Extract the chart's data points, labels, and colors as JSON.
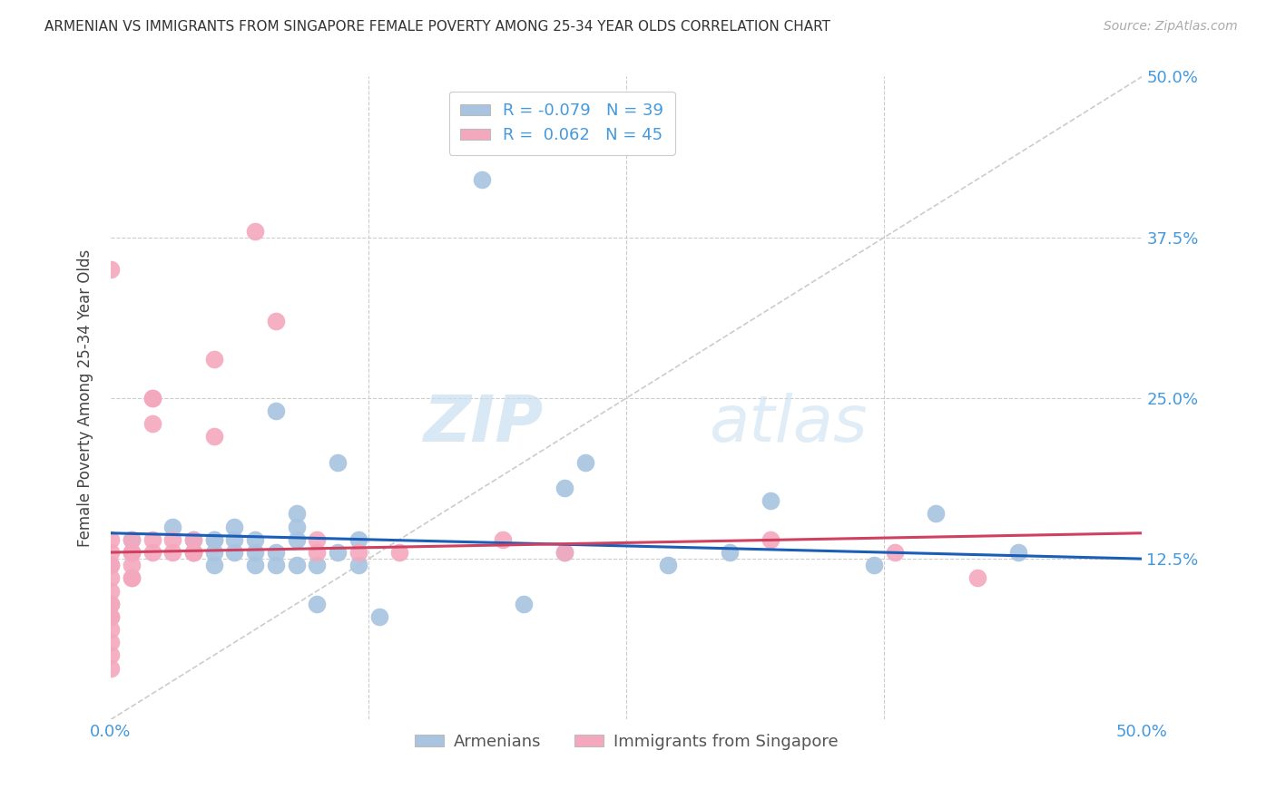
{
  "title": "ARMENIAN VS IMMIGRANTS FROM SINGAPORE FEMALE POVERTY AMONG 25-34 YEAR OLDS CORRELATION CHART",
  "source": "Source: ZipAtlas.com",
  "ylabel": "Female Poverty Among 25-34 Year Olds",
  "xlim": [
    0.0,
    0.5
  ],
  "ylim": [
    0.0,
    0.5
  ],
  "xticks": [
    0.0,
    0.125,
    0.25,
    0.375,
    0.5
  ],
  "yticks": [
    0.0,
    0.125,
    0.25,
    0.375,
    0.5
  ],
  "xticklabels": [
    "0.0%",
    "",
    "",
    "",
    "50.0%"
  ],
  "yticklabels": [
    "",
    "12.5%",
    "25.0%",
    "37.5%",
    "50.0%"
  ],
  "background_color": "#ffffff",
  "grid_color": "#cccccc",
  "diagonal_color": "#cccccc",
  "armenian_color": "#a8c4e0",
  "singapore_color": "#f4a8be",
  "armenian_line_color": "#1a5eb8",
  "singapore_line_color": "#d04060",
  "watermark_zip": "ZIP",
  "watermark_atlas": "atlas",
  "legend_R_armenian": "-0.079",
  "legend_N_armenian": "39",
  "legend_R_singapore": " 0.062",
  "legend_N_singapore": "45",
  "armenian_scatter_x": [
    0.01,
    0.03,
    0.04,
    0.04,
    0.05,
    0.05,
    0.05,
    0.05,
    0.06,
    0.06,
    0.06,
    0.07,
    0.07,
    0.07,
    0.08,
    0.08,
    0.08,
    0.09,
    0.09,
    0.09,
    0.09,
    0.1,
    0.1,
    0.11,
    0.11,
    0.12,
    0.12,
    0.13,
    0.18,
    0.2,
    0.22,
    0.22,
    0.23,
    0.27,
    0.3,
    0.32,
    0.37,
    0.4,
    0.44
  ],
  "armenian_scatter_y": [
    0.14,
    0.15,
    0.14,
    0.13,
    0.14,
    0.14,
    0.13,
    0.12,
    0.15,
    0.14,
    0.13,
    0.14,
    0.13,
    0.12,
    0.13,
    0.12,
    0.24,
    0.16,
    0.15,
    0.14,
    0.12,
    0.12,
    0.09,
    0.2,
    0.13,
    0.12,
    0.14,
    0.08,
    0.42,
    0.09,
    0.18,
    0.13,
    0.2,
    0.12,
    0.13,
    0.17,
    0.12,
    0.16,
    0.13
  ],
  "singapore_scatter_x": [
    0.0,
    0.0,
    0.0,
    0.0,
    0.0,
    0.0,
    0.0,
    0.0,
    0.0,
    0.0,
    0.0,
    0.0,
    0.0,
    0.0,
    0.0,
    0.01,
    0.01,
    0.01,
    0.01,
    0.01,
    0.01,
    0.01,
    0.02,
    0.02,
    0.02,
    0.02,
    0.02,
    0.03,
    0.03,
    0.04,
    0.04,
    0.04,
    0.05,
    0.05,
    0.07,
    0.08,
    0.1,
    0.1,
    0.12,
    0.14,
    0.19,
    0.22,
    0.32,
    0.38,
    0.42
  ],
  "singapore_scatter_y": [
    0.14,
    0.13,
    0.12,
    0.12,
    0.11,
    0.1,
    0.09,
    0.09,
    0.08,
    0.08,
    0.07,
    0.06,
    0.05,
    0.04,
    0.35,
    0.14,
    0.13,
    0.13,
    0.12,
    0.11,
    0.11,
    0.13,
    0.14,
    0.13,
    0.25,
    0.25,
    0.23,
    0.14,
    0.13,
    0.14,
    0.13,
    0.13,
    0.28,
    0.22,
    0.38,
    0.31,
    0.14,
    0.13,
    0.13,
    0.13,
    0.14,
    0.13,
    0.14,
    0.13,
    0.11
  ]
}
